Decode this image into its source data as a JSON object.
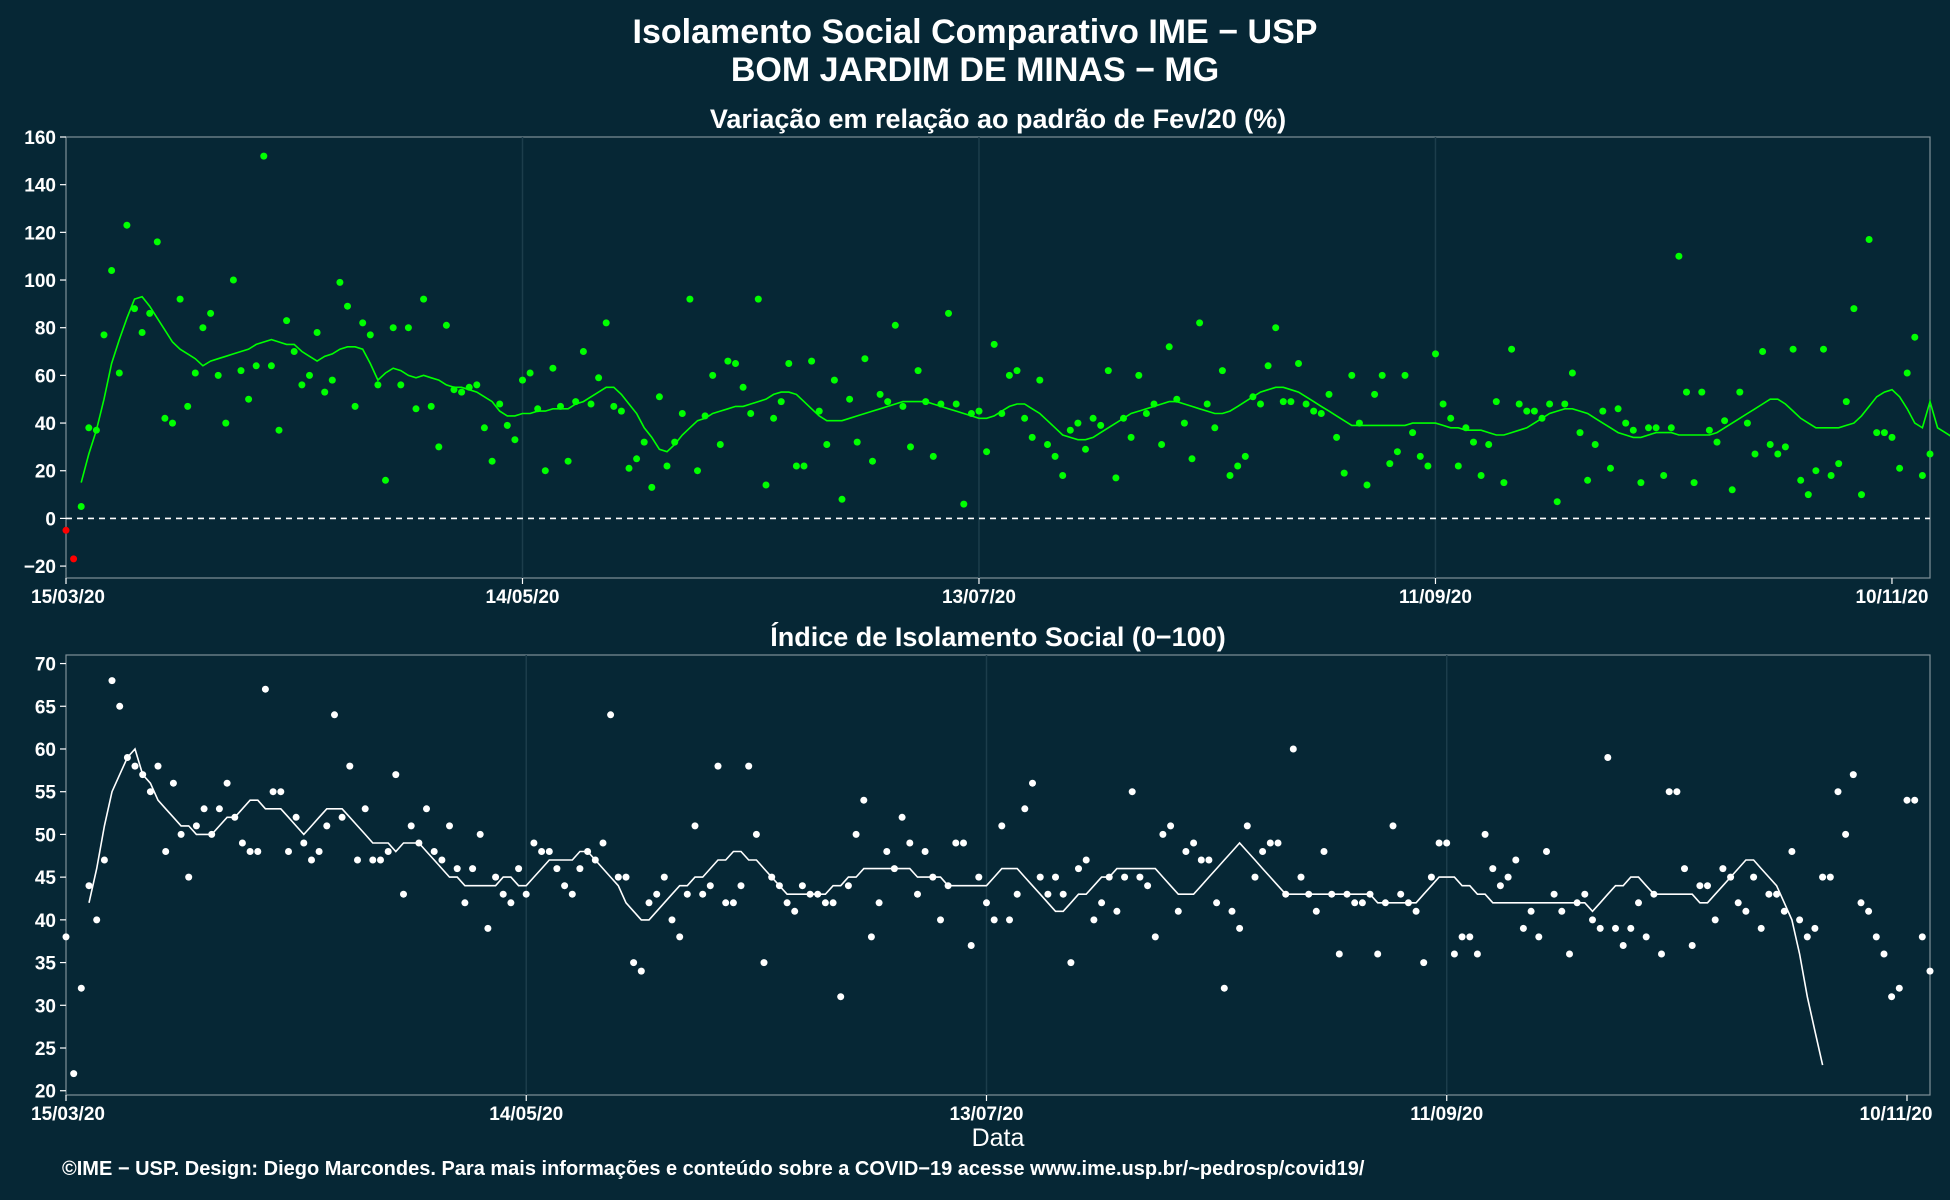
{
  "title": {
    "line1": "Isolamento Social Comparativo IME − USP",
    "line2": "BOM JARDIM DE MINAS − MG"
  },
  "footer": "©IME − USP. Design: Diego Marcondes. Para mais informações e conteúdo sobre a COVID−19 acesse www.ime.usp.br/~pedrosp/covid19/",
  "colors": {
    "background": "#062735",
    "panel_border": "#7f8f97",
    "grid": "#1c3d4b",
    "variation_points": "#00ff00",
    "variation_line": "#00ff00",
    "negative_points": "#ff0000",
    "index_points": "#ffffff",
    "index_line": "#ffffff"
  },
  "chart_data": [
    {
      "type": "scatter",
      "title": "Variação em relação ao padrão de Fev/20 (%)",
      "xlabel": "",
      "ylabel": "",
      "x_start": "15/03/20",
      "x_end": "13/11/20",
      "x_ticks": [
        "15/03/20",
        "14/05/20",
        "13/07/20",
        "11/09/20",
        "10/11/20"
      ],
      "x_tick_days": [
        0,
        60,
        120,
        180,
        240
      ],
      "ylim": [
        -25,
        160
      ],
      "y_ticks": [
        -20,
        0,
        20,
        40,
        60,
        80,
        100,
        120,
        140,
        160
      ],
      "y_tick_labels": [
        "−20",
        "0",
        "20",
        "40",
        "60",
        "80",
        "100",
        "120",
        "140",
        "160"
      ],
      "reference_line": 0,
      "grid": true,
      "series": [
        {
          "kind": "points",
          "values": [
            -5,
            -17,
            5,
            38,
            37,
            77,
            104,
            61,
            123,
            88,
            78,
            86,
            116,
            42,
            40,
            92,
            47,
            61,
            80,
            86,
            60,
            40,
            100,
            62,
            50,
            64,
            152,
            64,
            37,
            83,
            70,
            56,
            60,
            78,
            53,
            58,
            99,
            89,
            47,
            82,
            77,
            56,
            16,
            80,
            56,
            80,
            46,
            92,
            47,
            30,
            81,
            54,
            53,
            55,
            56,
            38,
            24,
            48,
            39,
            33,
            58,
            61,
            46,
            20,
            63,
            47,
            24,
            49,
            70,
            48,
            59,
            82,
            47,
            45,
            21,
            25,
            32,
            13,
            51,
            22,
            32,
            44,
            92,
            20,
            43,
            60,
            31,
            66,
            65,
            55,
            44,
            92,
            14,
            42,
            49,
            65,
            22,
            22,
            66,
            45,
            31,
            58,
            8,
            50,
            32,
            67,
            24,
            52,
            49,
            81,
            47,
            30,
            62,
            49,
            26,
            48,
            86,
            48,
            6,
            44,
            45,
            28,
            73,
            44,
            60,
            62,
            42,
            34,
            58,
            31,
            26,
            18,
            37,
            40,
            29,
            42,
            39,
            62,
            17,
            42,
            34,
            60,
            44,
            48,
            31,
            72,
            50,
            40,
            25,
            82,
            48,
            38,
            62,
            18,
            22,
            26,
            51,
            48,
            64,
            80,
            49,
            49,
            65,
            48,
            45,
            44,
            52,
            34,
            19,
            60,
            40,
            14,
            52,
            60,
            23,
            28,
            60,
            36,
            26,
            22,
            69,
            48,
            42,
            22,
            38,
            32,
            18,
            31,
            49,
            15,
            71,
            48,
            45,
            45,
            42,
            48,
            7,
            48,
            61,
            36,
            16,
            31,
            45,
            21,
            46,
            40,
            37,
            15,
            38,
            38,
            18,
            38,
            110,
            53,
            15,
            53,
            37,
            32,
            41,
            12,
            53,
            40,
            27,
            70,
            31,
            27,
            30,
            71,
            16,
            10,
            20,
            71,
            18,
            23,
            49,
            88,
            10,
            117,
            36,
            36,
            34,
            21,
            61,
            76,
            18,
            27
          ],
          "color": "#00ff00"
        },
        {
          "kind": "moving_average",
          "values": [
            null,
            null,
            15,
            27,
            37,
            50,
            65,
            75,
            84,
            92,
            93,
            89,
            84,
            79,
            74,
            71,
            69,
            67,
            64,
            66,
            67,
            68,
            69,
            70,
            71,
            73,
            74,
            75,
            74,
            73,
            73,
            70,
            68,
            66,
            68,
            69,
            71,
            72,
            72,
            71,
            65,
            58,
            61,
            63,
            62,
            60,
            59,
            60,
            59,
            58,
            56,
            55,
            55,
            54,
            53,
            51,
            49,
            45,
            43,
            43,
            44,
            44,
            45,
            45,
            46,
            46,
            46,
            48,
            49,
            51,
            53,
            55,
            55,
            52,
            48,
            44,
            38,
            34,
            29,
            28,
            31,
            35,
            38,
            41,
            42,
            44,
            45,
            46,
            47,
            47,
            48,
            49,
            50,
            52,
            53,
            53,
            52,
            49,
            46,
            43,
            41,
            41,
            41,
            42,
            43,
            44,
            45,
            46,
            47,
            48,
            49,
            49,
            49,
            49,
            48,
            47,
            46,
            45,
            44,
            43,
            42,
            42,
            43,
            45,
            47,
            48,
            48,
            46,
            44,
            41,
            38,
            35,
            34,
            33,
            33,
            34,
            36,
            38,
            40,
            42,
            44,
            45,
            46,
            47,
            48,
            49,
            49,
            48,
            47,
            46,
            45,
            44,
            44,
            45,
            47,
            49,
            51,
            53,
            54,
            55,
            55,
            54,
            53,
            51,
            49,
            47,
            45,
            43,
            41,
            39,
            39,
            39,
            39,
            39,
            39,
            39,
            39,
            40,
            40,
            40,
            40,
            39,
            38,
            38,
            37,
            37,
            37,
            36,
            35,
            35,
            36,
            37,
            38,
            40,
            42,
            44,
            45,
            46,
            46,
            45,
            44,
            42,
            40,
            38,
            36,
            35,
            34,
            34,
            35,
            36,
            36,
            36,
            35,
            35,
            35,
            35,
            35,
            36,
            38,
            40,
            42,
            44,
            46,
            48,
            50,
            50,
            48,
            45,
            42,
            40,
            38,
            38,
            38,
            38,
            39,
            40,
            43,
            47,
            51,
            53,
            54,
            51,
            46,
            40,
            38,
            49,
            38,
            36,
            34,
            null,
            null,
            null,
            null
          ],
          "color": "#00ff00"
        }
      ]
    },
    {
      "type": "scatter",
      "title": "Índice de Isolamento Social (0−100)",
      "xlabel": "Data",
      "ylabel": "",
      "x_start": "15/03/20",
      "x_end": "13/11/20",
      "x_ticks": [
        "15/03/20",
        "14/05/20",
        "13/07/20",
        "11/09/20",
        "10/11/20"
      ],
      "x_tick_days": [
        0,
        60,
        120,
        180,
        240
      ],
      "ylim": [
        19.5,
        71
      ],
      "y_ticks": [
        20,
        25,
        30,
        35,
        40,
        45,
        50,
        55,
        60,
        65,
        70
      ],
      "y_tick_labels": [
        "20",
        "25",
        "30",
        "35",
        "40",
        "45",
        "50",
        "55",
        "60",
        "65",
        "70"
      ],
      "grid": true,
      "series": [
        {
          "kind": "points",
          "values": [
            38,
            22,
            32,
            44,
            40,
            47,
            68,
            65,
            59,
            58,
            57,
            55,
            58,
            48,
            56,
            50,
            45,
            51,
            53,
            50,
            53,
            56,
            52,
            49,
            48,
            48,
            67,
            55,
            55,
            48,
            52,
            49,
            47,
            48,
            51,
            64,
            52,
            58,
            47,
            53,
            47,
            47,
            48,
            57,
            43,
            51,
            49,
            53,
            48,
            47,
            51,
            46,
            42,
            46,
            50,
            39,
            45,
            43,
            42,
            46,
            43,
            49,
            48,
            48,
            46,
            44,
            43,
            46,
            48,
            47,
            49,
            64,
            45,
            45,
            35,
            34,
            42,
            43,
            45,
            40,
            38,
            43,
            51,
            43,
            44,
            58,
            42,
            42,
            44,
            58,
            50,
            35,
            45,
            44,
            42,
            41,
            44,
            43,
            43,
            42,
            42,
            31,
            44,
            50,
            54,
            38,
            42,
            48,
            46,
            52,
            49,
            43,
            48,
            45,
            40,
            44,
            49,
            49,
            37,
            45,
            42,
            40,
            51,
            40,
            43,
            53,
            56,
            45,
            43,
            45,
            43,
            35,
            46,
            47,
            40,
            42,
            45,
            41,
            45,
            55,
            45,
            44,
            38,
            50,
            51,
            41,
            48,
            49,
            47,
            47,
            42,
            32,
            41,
            39,
            51,
            45,
            48,
            49,
            49,
            43,
            60,
            45,
            43,
            41,
            48,
            43,
            36,
            43,
            42,
            42,
            43,
            36,
            42,
            51,
            43,
            42,
            41,
            35,
            45,
            49,
            49,
            36,
            38,
            38,
            36,
            50,
            46,
            44,
            45,
            47,
            39,
            41,
            38,
            48,
            43,
            41,
            36,
            42,
            43,
            40,
            39,
            59,
            39,
            37,
            39,
            42,
            38,
            43,
            36,
            55,
            55,
            46,
            37,
            44,
            44,
            40,
            46,
            45,
            42,
            41,
            45,
            39,
            43,
            43,
            41,
            48,
            40,
            38,
            39,
            45,
            45,
            55,
            50,
            57,
            42,
            41,
            38,
            36,
            31,
            32,
            54,
            54,
            38,
            34
          ],
          "color": "#ffffff"
        },
        {
          "kind": "moving_average",
          "values": [
            null,
            null,
            null,
            42,
            46,
            51,
            55,
            57,
            59,
            60,
            57,
            56,
            54,
            53,
            52,
            51,
            51,
            50,
            50,
            50,
            51,
            52,
            52,
            53,
            54,
            54,
            53,
            53,
            53,
            52,
            51,
            50,
            51,
            52,
            53,
            53,
            53,
            52,
            51,
            50,
            49,
            49,
            49,
            48,
            49,
            49,
            49,
            48,
            47,
            46,
            45,
            45,
            44,
            44,
            44,
            44,
            44,
            45,
            45,
            44,
            44,
            45,
            46,
            47,
            47,
            47,
            47,
            48,
            48,
            47,
            46,
            45,
            44,
            42,
            41,
            40,
            40,
            41,
            42,
            43,
            44,
            44,
            45,
            45,
            46,
            47,
            47,
            48,
            48,
            47,
            47,
            46,
            45,
            44,
            43,
            43,
            43,
            43,
            43,
            43,
            44,
            44,
            45,
            45,
            46,
            46,
            46,
            46,
            46,
            46,
            46,
            45,
            45,
            45,
            45,
            44,
            44,
            44,
            44,
            44,
            44,
            45,
            46,
            46,
            46,
            45,
            44,
            43,
            42,
            41,
            41,
            42,
            43,
            43,
            44,
            45,
            45,
            46,
            46,
            46,
            46,
            46,
            46,
            45,
            44,
            43,
            43,
            43,
            44,
            45,
            46,
            47,
            48,
            49,
            48,
            47,
            46,
            45,
            44,
            43,
            43,
            43,
            43,
            43,
            43,
            43,
            43,
            43,
            43,
            43,
            43,
            42,
            42,
            42,
            42,
            42,
            42,
            43,
            44,
            45,
            45,
            45,
            44,
            44,
            43,
            43,
            42,
            42,
            42,
            42,
            42,
            42,
            42,
            42,
            42,
            42,
            42,
            42,
            42,
            41,
            42,
            43,
            44,
            44,
            45,
            45,
            44,
            43,
            43,
            43,
            43,
            43,
            43,
            42,
            42,
            43,
            44,
            45,
            46,
            47,
            47,
            46,
            45,
            44,
            42,
            40,
            36,
            31,
            27,
            23,
            null,
            null,
            null,
            null,
            null,
            null,
            null,
            null,
            null,
            null,
            null,
            null,
            null,
            null,
            null,
            null,
            null
          ],
          "color": "#ffffff"
        }
      ]
    }
  ]
}
